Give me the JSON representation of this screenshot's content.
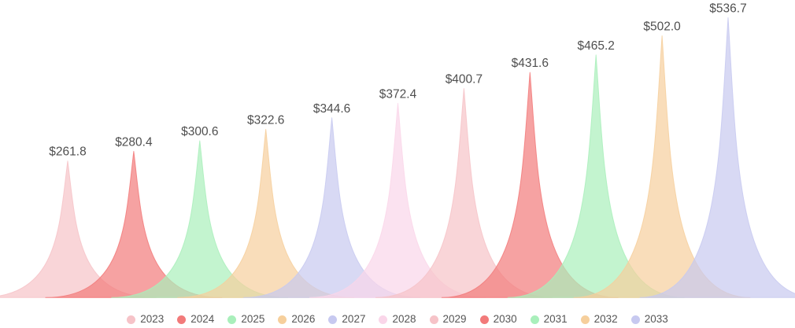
{
  "chart_data": {
    "type": "area",
    "subtype": "pictorial-spike-peaks",
    "title": "",
    "categories": [
      "2023",
      "2024",
      "2025",
      "2026",
      "2027",
      "2028",
      "2029",
      "2030",
      "2031",
      "2032",
      "2033"
    ],
    "values": [
      261.8,
      280.4,
      300.6,
      322.6,
      344.6,
      372.4,
      400.7,
      431.6,
      465.2,
      502.0,
      536.7
    ],
    "value_labels": [
      "$261.8",
      "$280.4",
      "$300.6",
      "$322.6",
      "$344.6",
      "$372.4",
      "$400.7",
      "$431.6",
      "$465.2",
      "$502.0",
      "$536.7"
    ],
    "series_colors": [
      "#F6C3C8",
      "#F27A7A",
      "#A9EFBB",
      "#F6CF9C",
      "#C7C9F0",
      "#FAD6E9",
      "#F6C3C8",
      "#F27A7A",
      "#A9EFBB",
      "#F6CF9C",
      "#C7C9F0"
    ],
    "legend_position": "bottom",
    "legend_entries": [
      "2023",
      "2024",
      "2025",
      "2026",
      "2027",
      "2028",
      "2029",
      "2030",
      "2031",
      "2032",
      "2033"
    ],
    "grid": false,
    "axes_visible": false,
    "ylim": [
      0,
      560
    ],
    "label_color": "#4F4F4F",
    "legend_text_color": "#555555",
    "background_color": "#FFFFFF"
  }
}
